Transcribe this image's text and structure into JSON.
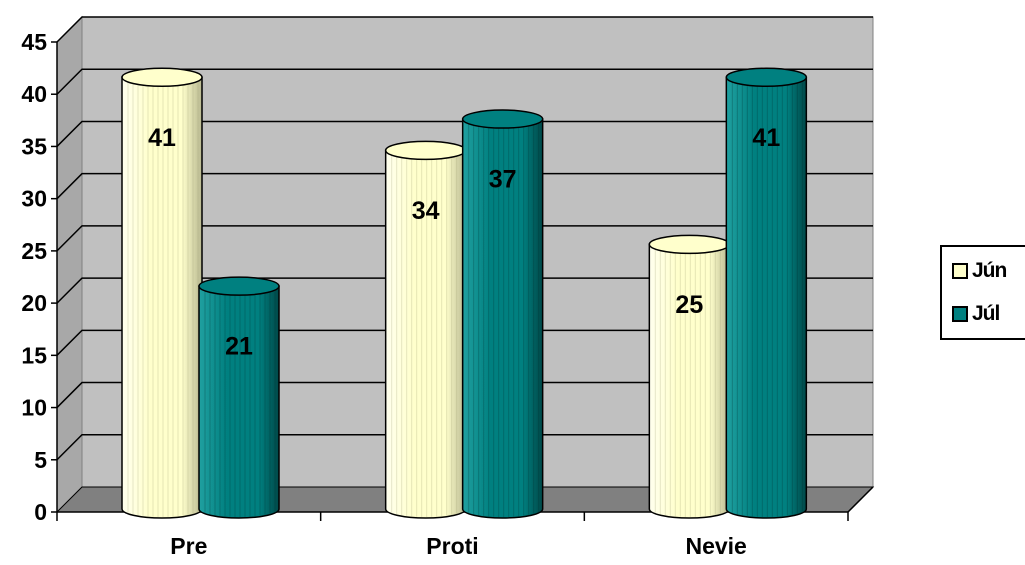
{
  "chart_data": {
    "type": "bar",
    "style": "3d-cylinder",
    "categories": [
      "Pre",
      "Proti",
      "Nevie"
    ],
    "series": [
      {
        "name": "Jún",
        "values": [
          41,
          34,
          25
        ],
        "color": "#ffffcc"
      },
      {
        "name": "Júl",
        "values": [
          21,
          37,
          41
        ],
        "color": "#008080"
      }
    ],
    "title": "",
    "xlabel": "",
    "ylabel": "",
    "ylim": [
      0,
      45
    ],
    "yticks": [
      0,
      5,
      10,
      15,
      20,
      25,
      30,
      35,
      40,
      45
    ],
    "grid": true,
    "legend_position": "right",
    "wall_color": "#c0c0c0",
    "floor_color": "#808080"
  }
}
